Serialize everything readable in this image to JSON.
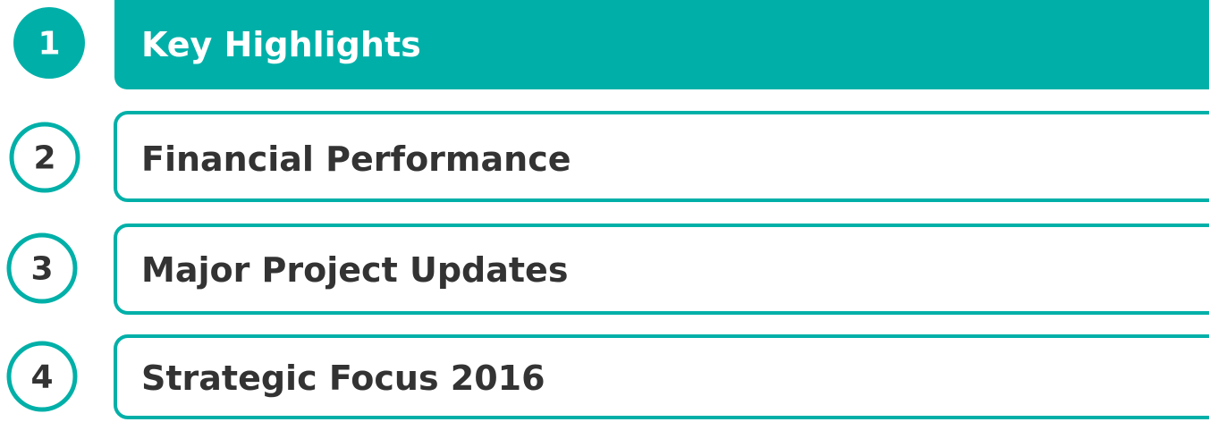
{
  "agenda": {
    "items": [
      {
        "number": 1,
        "label": "Key Highlights",
        "selected": true
      },
      {
        "number": 2,
        "label": "Financial Performance",
        "selected": false
      },
      {
        "number": 3,
        "label": "Major Project Updates",
        "selected": false
      },
      {
        "number": 4,
        "label": "Strategic Focus 2016",
        "selected": false
      }
    ]
  }
}
